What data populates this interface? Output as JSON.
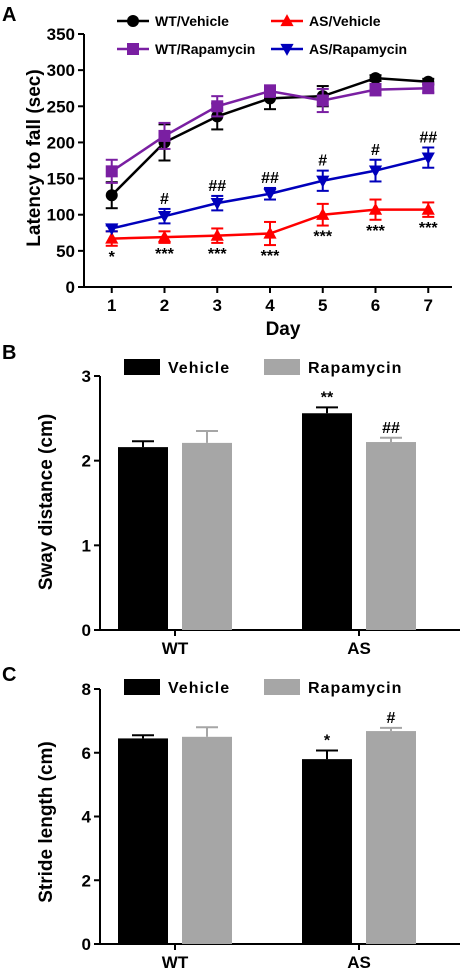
{
  "chart_data": [
    {
      "panel": "A",
      "type": "line",
      "xlabel": "Day",
      "ylabel": "Latency to fall (sec)",
      "x": [
        1,
        2,
        3,
        4,
        5,
        6,
        7
      ],
      "xlim": [
        0.55,
        7.45
      ],
      "ylim": [
        0,
        350
      ],
      "yticks": [
        0,
        50,
        100,
        150,
        200,
        250,
        300,
        350
      ],
      "legend": "top",
      "series": [
        {
          "name": "WT/Vehicle",
          "marker": "circle",
          "color": "#000000",
          "values": [
            127,
            200,
            236,
            261,
            264,
            289,
            284
          ],
          "errors": [
            18,
            25,
            18,
            15,
            14,
            4,
            4
          ]
        },
        {
          "name": "AS/Vehicle",
          "marker": "triangle-up",
          "color": "#ff0000",
          "values": [
            67,
            69,
            71,
            74,
            100,
            107,
            107
          ],
          "errors": [
            10,
            8,
            10,
            16,
            15,
            14,
            10
          ],
          "annotations": [
            "*",
            "***",
            "***",
            "***",
            "***",
            "***",
            "***"
          ]
        },
        {
          "name": "WT/Rapamycin",
          "marker": "square",
          "color": "#7a1fa2",
          "values": [
            160,
            209,
            250,
            271,
            258,
            273,
            275
          ],
          "errors": [
            16,
            18,
            14,
            8,
            16,
            8,
            6
          ]
        },
        {
          "name": "AS/Rapamycin",
          "marker": "triangle-down",
          "color": "#0000bb",
          "values": [
            81,
            98,
            116,
            129,
            147,
            161,
            179
          ],
          "errors": [
            4,
            10,
            10,
            8,
            14,
            15,
            14
          ],
          "annotations": [
            "",
            "#",
            "##",
            "##",
            "#",
            "#",
            "##"
          ]
        }
      ]
    },
    {
      "panel": "B",
      "type": "bar",
      "ylabel": "Sway distance (cm)",
      "categories": [
        "WT",
        "AS"
      ],
      "ylim": [
        0,
        3
      ],
      "yticks": [
        0,
        1,
        2,
        3
      ],
      "legend": "top",
      "series": [
        {
          "name": "Vehicle",
          "color": "#000000",
          "values": [
            2.16,
            2.56
          ],
          "errors": [
            0.07,
            0.07
          ],
          "annotations": [
            "",
            "**"
          ]
        },
        {
          "name": "Rapamycin",
          "color": "#a6a6a6",
          "values": [
            2.21,
            2.22
          ],
          "errors": [
            0.14,
            0.05
          ],
          "annotations": [
            "",
            "##"
          ]
        }
      ]
    },
    {
      "panel": "C",
      "type": "bar",
      "ylabel": "Stride length (cm)",
      "categories": [
        "WT",
        "AS"
      ],
      "ylim": [
        0,
        8
      ],
      "yticks": [
        0,
        2,
        4,
        6,
        8
      ],
      "legend": "top",
      "series": [
        {
          "name": "Vehicle",
          "color": "#000000",
          "values": [
            6.45,
            5.8
          ],
          "errors": [
            0.1,
            0.27
          ],
          "annotations": [
            "",
            "*"
          ]
        },
        {
          "name": "Rapamycin",
          "color": "#a6a6a6",
          "values": [
            6.5,
            6.68
          ],
          "errors": [
            0.3,
            0.1
          ],
          "annotations": [
            "",
            "#"
          ]
        }
      ]
    }
  ]
}
